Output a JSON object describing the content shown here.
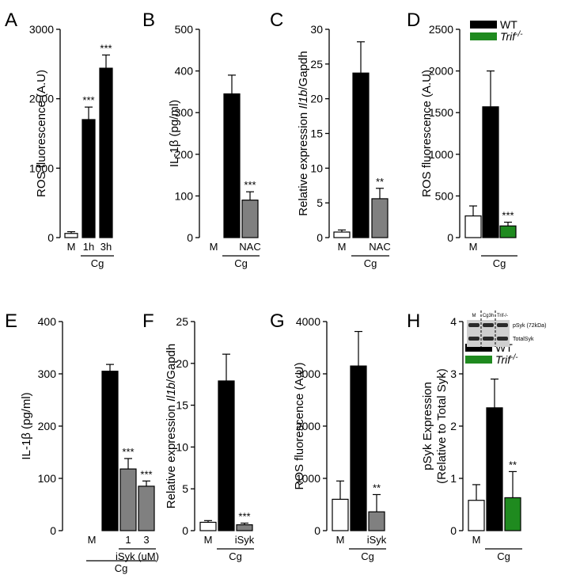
{
  "chart_data": [
    {
      "type": "bar",
      "panel_letter": "A",
      "ylabel": "ROS fluorescence (A.U)",
      "ylim": [
        0,
        3000
      ],
      "yticks": [
        0,
        1000,
        2000,
        3000
      ],
      "categories": [
        "M",
        "1h",
        "3h"
      ],
      "values": [
        60,
        1700,
        2440
      ],
      "errors": [
        25,
        180,
        190
      ],
      "fills": [
        "#ffffff",
        "#000000",
        "#000000"
      ],
      "significance": [
        "",
        "***",
        "***"
      ],
      "groups": [
        {
          "label": "Cg",
          "from": 1,
          "to": 2
        }
      ]
    },
    {
      "type": "bar",
      "panel_letter": "B",
      "ylabel": "IL-1β (pg/ml)",
      "ylim": [
        0,
        500
      ],
      "yticks": [
        0,
        100,
        200,
        300,
        400,
        500
      ],
      "categories": [
        "M",
        "",
        "NAC"
      ],
      "values": [
        0,
        345,
        90
      ],
      "errors": [
        0,
        45,
        20
      ],
      "fills": [
        "#ffffff",
        "#000000",
        "#808080"
      ],
      "significance": [
        "",
        "",
        "***"
      ],
      "groups": [
        {
          "label": "Cg",
          "from": 1,
          "to": 2
        }
      ]
    },
    {
      "type": "bar",
      "panel_letter": "C",
      "ylabel_parts": [
        "Relative expression ",
        "Il1b",
        "/Gapdh"
      ],
      "ylim": [
        0,
        30
      ],
      "yticks": [
        0,
        5,
        10,
        15,
        20,
        25,
        30
      ],
      "categories": [
        "M",
        "",
        "NAC"
      ],
      "values": [
        0.8,
        23.7,
        5.6
      ],
      "errors": [
        0.3,
        4.5,
        1.5
      ],
      "fills": [
        "#ffffff",
        "#000000",
        "#808080"
      ],
      "significance": [
        "",
        "",
        "**"
      ],
      "groups": [
        {
          "label": "Cg",
          "from": 1,
          "to": 2
        }
      ]
    },
    {
      "type": "bar",
      "panel_letter": "D",
      "ylabel": "ROS fluorescence (A.U)",
      "ylim": [
        0,
        2500
      ],
      "yticks": [
        0,
        500,
        1000,
        1500,
        2000,
        2500
      ],
      "categories": [
        "M",
        "",
        ""
      ],
      "values": [
        260,
        1570,
        140
      ],
      "errors": [
        120,
        430,
        45
      ],
      "fills": [
        "#ffffff",
        "#000000",
        "#1f8a1f"
      ],
      "significance": [
        "",
        "",
        "***"
      ],
      "groups": [
        {
          "label": "Cg",
          "from": 1,
          "to": 2
        }
      ],
      "legend": [
        {
          "label": "WT",
          "color": "#000000"
        },
        {
          "label": "Trif",
          "sup": "-/-",
          "color": "#1f8a1f"
        }
      ]
    },
    {
      "type": "bar",
      "panel_letter": "E",
      "ylabel": "IL-1β (pg/ml)",
      "ylim": [
        0,
        400
      ],
      "yticks": [
        0,
        100,
        200,
        300,
        400
      ],
      "categories": [
        "M",
        "",
        "1",
        "3"
      ],
      "values": [
        0,
        305,
        118,
        85
      ],
      "errors": [
        0,
        13,
        20,
        10
      ],
      "fills": [
        "#ffffff",
        "#000000",
        "#808080",
        "#808080"
      ],
      "significance": [
        "",
        "",
        "***",
        "***"
      ],
      "groups": [
        {
          "label": "iSyk (uM)",
          "from": 2,
          "to": 3
        },
        {
          "label": "Cg",
          "from": 1,
          "to": 3
        }
      ]
    },
    {
      "type": "bar",
      "panel_letter": "F",
      "ylabel_parts": [
        "Relative expression ",
        "Il1b",
        "/Gapdh"
      ],
      "ylim": [
        0,
        25
      ],
      "yticks": [
        0,
        5,
        10,
        15,
        20,
        25
      ],
      "categories": [
        "M",
        "",
        "iSyk"
      ],
      "values": [
        1.0,
        17.9,
        0.7
      ],
      "errors": [
        0.2,
        3.2,
        0.2
      ],
      "fills": [
        "#ffffff",
        "#000000",
        "#808080"
      ],
      "significance": [
        "",
        "",
        "***"
      ],
      "groups": [
        {
          "label": "Cg",
          "from": 1,
          "to": 2
        }
      ]
    },
    {
      "type": "bar",
      "panel_letter": "G",
      "ylabel": "ROS fluorescence (A.U)",
      "ylim": [
        0,
        4000
      ],
      "yticks": [
        0,
        1000,
        2000,
        3000,
        4000
      ],
      "categories": [
        "M",
        "",
        "iSyk"
      ],
      "values": [
        600,
        3150,
        360
      ],
      "errors": [
        350,
        660,
        330
      ],
      "fills": [
        "#ffffff",
        "#000000",
        "#808080"
      ],
      "significance": [
        "",
        "",
        "**"
      ],
      "groups": [
        {
          "label": "Cg",
          "from": 1,
          "to": 2
        }
      ]
    },
    {
      "type": "bar",
      "panel_letter": "H",
      "ylabel": "pSyk Expression",
      "ylabel2": "(Relative to Total Syk)",
      "ylim": [
        0,
        4
      ],
      "yticks": [
        0,
        1,
        2,
        3,
        4
      ],
      "categories": [
        "M",
        "",
        ""
      ],
      "values": [
        0.58,
        2.35,
        0.63
      ],
      "errors": [
        0.3,
        0.55,
        0.5
      ],
      "fills": [
        "#ffffff",
        "#000000",
        "#1f8a1f"
      ],
      "significance": [
        "",
        "",
        "**"
      ],
      "groups": [
        {
          "label": "Cg",
          "from": 1,
          "to": 2
        }
      ],
      "legend": [
        {
          "label": "WT",
          "color": "#000000"
        },
        {
          "label": "Trif",
          "sup": "-/-",
          "color": "#1f8a1f"
        }
      ],
      "blot": {
        "lanes": [
          "M",
          "Cg3h",
          "Trif-/-"
        ],
        "bands": [
          "pSyk (72kDa)",
          "TotalSyk"
        ]
      }
    }
  ]
}
